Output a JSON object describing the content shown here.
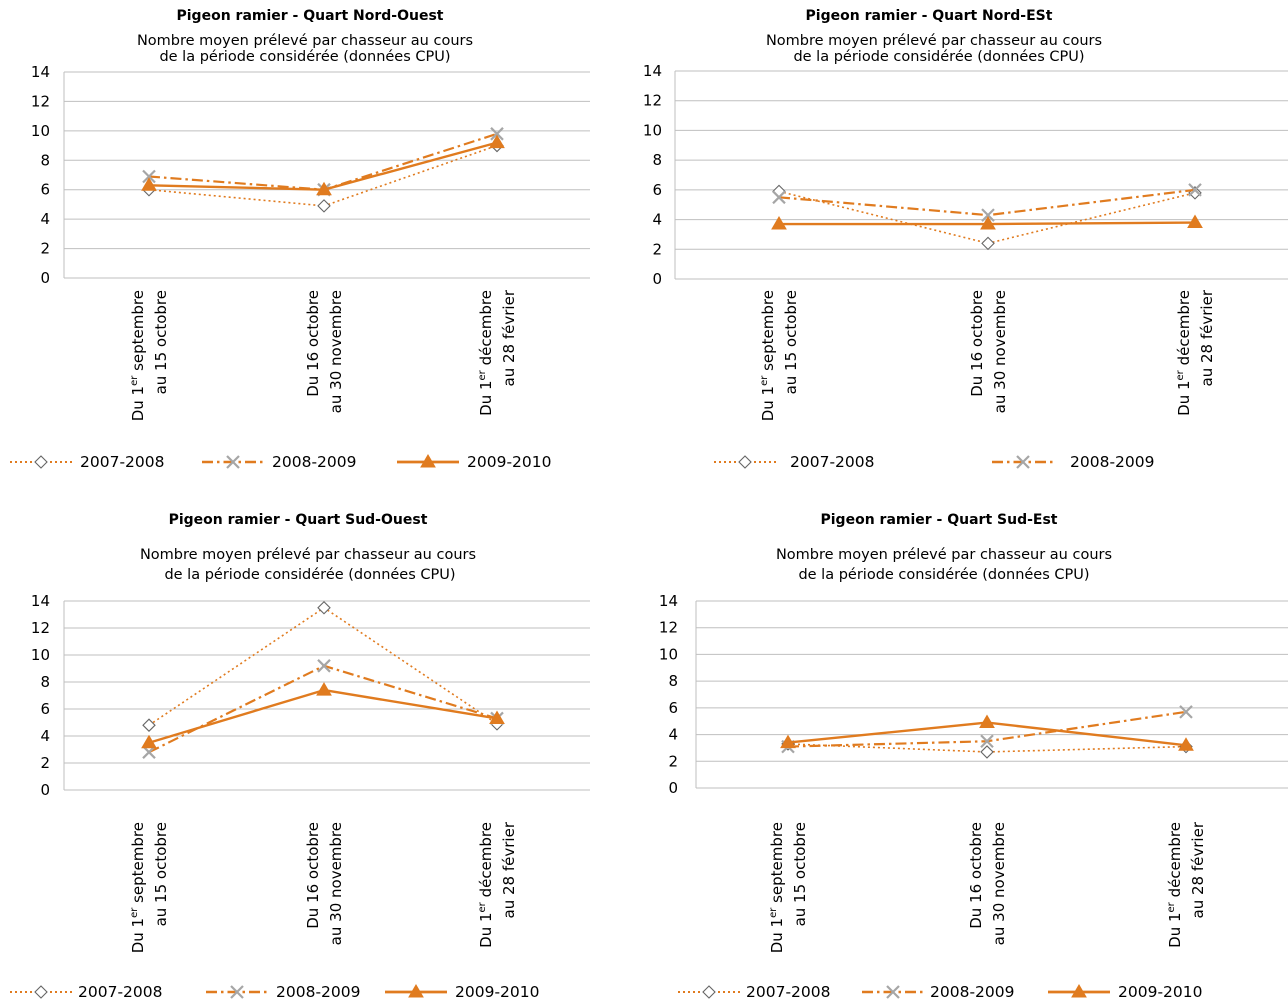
{
  "colors": {
    "series": "#E07B1F",
    "grid": "#BFBFBF",
    "marker_gray": "#A6A6A6"
  },
  "chart_data": [
    {
      "type": "line",
      "title": "Pigeon ramier  - Quart Nord-Ouest",
      "subtitle": [
        "Nombre moyen prélevé par chasseur au cours",
        "de la période considérée (données CPU)"
      ],
      "categories": [
        [
          "Du 1er septembre",
          "au 15 octobre"
        ],
        [
          "Du 16 octobre",
          "au 30 novembre"
        ],
        [
          "Du 1er décembre",
          "au 28 février"
        ]
      ],
      "yticks": [
        "0",
        "2",
        "4",
        "6",
        "8",
        "10",
        "12",
        "14"
      ],
      "ylim": [
        0,
        14
      ],
      "grid": true,
      "legend": "bottom",
      "series": [
        {
          "name": "2007-2008",
          "style": "dotted",
          "marker": "diamond",
          "values": [
            6.0,
            4.9,
            9.0
          ]
        },
        {
          "name": "2008-2009",
          "style": "dashdot",
          "marker": "x",
          "values": [
            6.9,
            6.0,
            9.8
          ]
        },
        {
          "name": "2009-2010",
          "style": "solid",
          "marker": "triangle",
          "values": [
            6.3,
            6.0,
            9.2
          ]
        }
      ]
    },
    {
      "type": "line",
      "title": "Pigeon ramier - Quart Nord-ESt",
      "subtitle": [
        "Nombre moyen prélevé par chasseur au cours",
        "de la période considérée (données CPU)"
      ],
      "categories": [
        [
          "Du 1er septembre",
          "au 15 octobre"
        ],
        [
          "Du 16 octobre",
          "au 30 novembre"
        ],
        [
          "Du 1er décembre",
          "au 28 février"
        ]
      ],
      "yticks": [
        "0",
        "2",
        "4",
        "6",
        "8",
        "10",
        "12",
        "14"
      ],
      "ylim": [
        0,
        14
      ],
      "grid": true,
      "legend": "bottom",
      "series": [
        {
          "name": "2007-2008",
          "style": "dotted",
          "marker": "diamond",
          "values": [
            5.9,
            2.4,
            5.8
          ]
        },
        {
          "name": "2008-2009",
          "style": "dashdot",
          "marker": "x",
          "values": [
            5.5,
            4.3,
            6.0
          ]
        },
        {
          "name": "",
          "style": "solid",
          "marker": "triangle",
          "values": [
            3.7,
            3.7,
            3.8
          ]
        }
      ]
    },
    {
      "type": "line",
      "title": "Pigeon ramier - Quart Sud-Ouest",
      "subtitle": [
        "Nombre moyen prélevé par chasseur au cours",
        "de la période considérée (données CPU)"
      ],
      "categories": [
        [
          "Du 1er septembre",
          "au 15 octobre"
        ],
        [
          "Du 16 octobre",
          "au 30 novembre"
        ],
        [
          "Du 1er décembre",
          "au 28 février"
        ]
      ],
      "yticks": [
        "0",
        "2",
        "4",
        "6",
        "8",
        "10",
        "12",
        "14"
      ],
      "ylim": [
        0,
        14
      ],
      "grid": true,
      "legend": "bottom",
      "series": [
        {
          "name": "2007-2008",
          "style": "dotted",
          "marker": "diamond",
          "values": [
            4.8,
            13.5,
            4.9
          ]
        },
        {
          "name": "2008-2009",
          "style": "dashdot",
          "marker": "x",
          "values": [
            2.8,
            9.2,
            5.3
          ]
        },
        {
          "name": "2009-2010",
          "style": "solid",
          "marker": "triangle",
          "values": [
            3.5,
            7.4,
            5.3
          ]
        }
      ]
    },
    {
      "type": "line",
      "title": "Pigeon ramier - Quart Sud-Est",
      "subtitle": [
        "Nombre moyen prélevé par chasseur au cours",
        "de la période considérée (données CPU)"
      ],
      "categories": [
        [
          "Du 1er septembre",
          "au 15 octobre"
        ],
        [
          "Du 16 octobre",
          "au 30 novembre"
        ],
        [
          "Du 1er décembre",
          "au 28 février"
        ]
      ],
      "yticks": [
        "0",
        "2",
        "4",
        "6",
        "8",
        "10",
        "12",
        "14"
      ],
      "ylim": [
        0,
        14
      ],
      "grid": true,
      "legend": "bottom",
      "series": [
        {
          "name": "2007-2008",
          "style": "dotted",
          "marker": "diamond",
          "values": [
            3.3,
            2.7,
            3.1
          ]
        },
        {
          "name": "2008-2009",
          "style": "dashdot",
          "marker": "x",
          "values": [
            3.1,
            3.5,
            5.7
          ]
        },
        {
          "name": "2009-2010",
          "style": "solid",
          "marker": "triangle",
          "values": [
            3.4,
            4.9,
            3.2
          ]
        }
      ]
    }
  ]
}
